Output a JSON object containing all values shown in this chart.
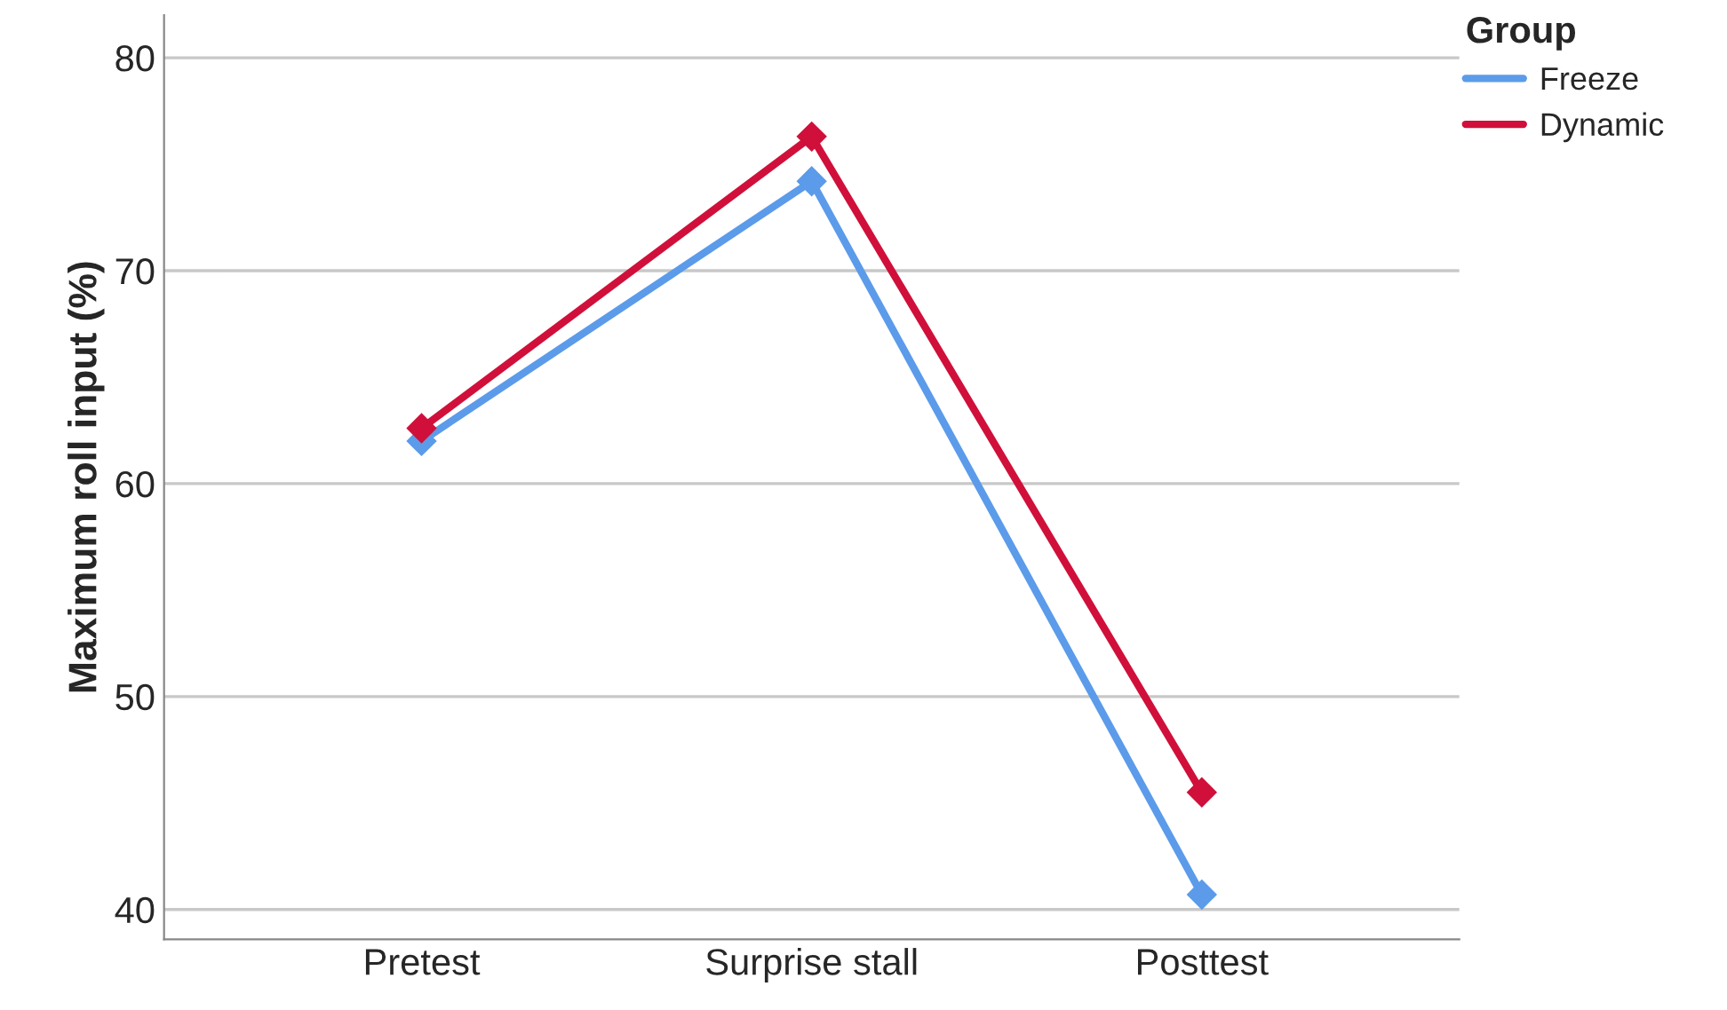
{
  "chart_data": {
    "type": "line",
    "ylabel": "Maximum roll input (%)",
    "legend_title": "Group",
    "categories": [
      "Pretest",
      "Surprise stall",
      "Posttest"
    ],
    "series": [
      {
        "name": "Freeze",
        "color": "#5b9bea",
        "values": [
          62.0,
          74.2,
          40.7
        ]
      },
      {
        "name": "Dynamic",
        "color": "#d0103a",
        "values": [
          62.6,
          76.3,
          45.5
        ]
      }
    ],
    "ylim": [
      38.6,
      82
    ],
    "yticks": [
      40,
      50,
      60,
      70,
      80
    ],
    "grid": "y",
    "legend": "top right",
    "marker": "diamond",
    "line_style": "solid"
  }
}
